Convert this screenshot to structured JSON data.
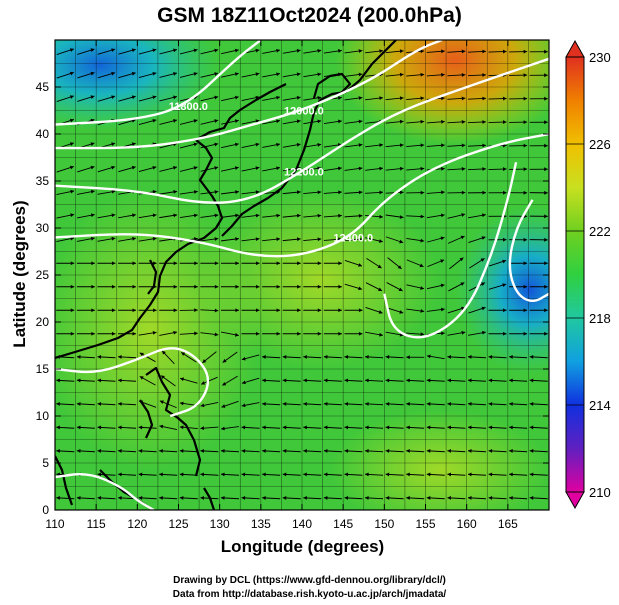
{
  "chart_data": {
    "type": "heatmap",
    "title": "GSM 18Z11Oct2024 (200.0hPa)",
    "xlabel": "Longitude (degrees)",
    "ylabel": "Latitude  (degrees)",
    "xlim": [
      110,
      170
    ],
    "ylim": [
      0,
      50
    ],
    "xticks": [
      110,
      115,
      120,
      125,
      130,
      135,
      140,
      145,
      150,
      155,
      160,
      165
    ],
    "yticks": [
      0,
      5,
      10,
      15,
      20,
      25,
      30,
      35,
      40,
      45
    ],
    "colorbar": {
      "min": 210,
      "max": 230,
      "ticks": [
        210,
        214,
        218,
        222,
        226,
        230
      ],
      "colors": [
        "#e000a0",
        "#6020c0",
        "#1030e0",
        "#10a0e0",
        "#20c8a0",
        "#30d040",
        "#70d020",
        "#c8e020",
        "#f0c000",
        "#f08000",
        "#e03020"
      ]
    },
    "contours": [
      {
        "label": "11800.0",
        "points": [
          [
            110,
            41
          ],
          [
            120,
            41.5
          ],
          [
            126,
            43
          ],
          [
            132,
            48
          ],
          [
            135,
            50
          ]
        ]
      },
      {
        "label": "12000.0",
        "points": [
          [
            110,
            38.5
          ],
          [
            120,
            38.5
          ],
          [
            128,
            39.5
          ],
          [
            134,
            41
          ],
          [
            140,
            42.5
          ],
          [
            148,
            45.5
          ],
          [
            154,
            49
          ],
          [
            157,
            50
          ]
        ]
      },
      {
        "label": "12200.0",
        "points": [
          [
            110,
            34.5
          ],
          [
            120,
            34
          ],
          [
            128,
            32.5
          ],
          [
            134,
            33
          ],
          [
            140,
            36
          ],
          [
            146,
            39.5
          ],
          [
            152,
            42.5
          ],
          [
            160,
            45
          ],
          [
            170,
            48
          ]
        ]
      },
      {
        "label": "12400.0",
        "points": [
          [
            110,
            29
          ],
          [
            120,
            29.5
          ],
          [
            128,
            28.5
          ],
          [
            134,
            27
          ],
          [
            140,
            27
          ],
          [
            146,
            29
          ],
          [
            150,
            33
          ],
          [
            156,
            36.5
          ],
          [
            164,
            39
          ],
          [
            170,
            40
          ]
        ]
      },
      {
        "label": "",
        "points": [
          [
            110,
            15
          ],
          [
            115,
            14.5
          ],
          [
            120,
            16
          ],
          [
            124,
            17.5
          ],
          [
            127,
            16.5
          ],
          [
            129,
            14
          ],
          [
            127.5,
            11
          ],
          [
            124,
            10
          ]
        ]
      },
      {
        "label": "",
        "points": [
          [
            110,
            3.5
          ],
          [
            114,
            4
          ],
          [
            118,
            2.5
          ],
          [
            120,
            1
          ],
          [
            122,
            0
          ]
        ]
      },
      {
        "label": "",
        "points": [
          [
            150,
            23
          ],
          [
            151,
            19
          ],
          [
            155,
            18
          ],
          [
            160,
            21
          ],
          [
            163,
            27
          ],
          [
            165,
            33
          ],
          [
            166,
            37
          ]
        ]
      },
      {
        "label": "",
        "points": [
          [
            168,
            33
          ],
          [
            166,
            30
          ],
          [
            165,
            26
          ],
          [
            166,
            23
          ],
          [
            168,
            22
          ],
          [
            170,
            23
          ]
        ]
      }
    ]
  },
  "footer": {
    "line1": "Drawing by DCL (https://www.gfd-dennou.org/library/dcl/)",
    "line2": "Data from http://database.rish.kyoto-u.ac.jp/arch/jmadata/"
  }
}
